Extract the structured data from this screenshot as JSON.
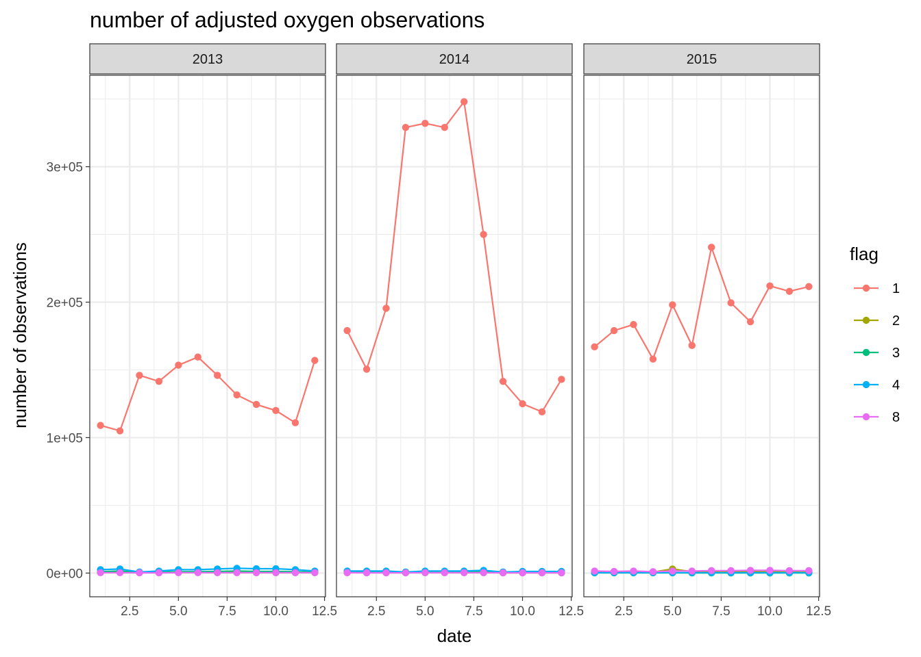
{
  "chart_data": {
    "type": "line",
    "title": "number of adjusted oxygen observations",
    "xlabel": "date",
    "ylabel": "number of observations",
    "xlim": [
      0.45,
      12.55
    ],
    "ylim": [
      -17500,
      367500
    ],
    "x_ticks": [
      2.5,
      5.0,
      7.5,
      10.0,
      12.5
    ],
    "x_tick_labels": [
      "2.5",
      "5.0",
      "7.5",
      "10.0",
      "12.5"
    ],
    "y_ticks": [
      0,
      100000,
      200000,
      300000
    ],
    "y_tick_labels": [
      "0e+00",
      "1e+05",
      "2e+05",
      "3e+05"
    ],
    "grid": true,
    "legend_title": "flag",
    "legend_position": "right",
    "series_legend": [
      {
        "name": "1",
        "color": "#F8766D"
      },
      {
        "name": "2",
        "color": "#A3A500"
      },
      {
        "name": "3",
        "color": "#00BF7D"
      },
      {
        "name": "4",
        "color": "#00B0F6"
      },
      {
        "name": "8",
        "color": "#E76BF3"
      }
    ],
    "panels": [
      {
        "facet_label": "2013",
        "series": [
          {
            "name": "1",
            "x": [
              1,
              2,
              3,
              4,
              5,
              6,
              7,
              8,
              9,
              10,
              11,
              12
            ],
            "values": [
              109000,
              105000,
              146000,
              141500,
              153500,
              159500,
              146000,
              131500,
              124500,
              120000,
              111000,
              157000
            ]
          },
          {
            "name": "2",
            "x": [
              1,
              2,
              3,
              4,
              5,
              6,
              7,
              8,
              9,
              10,
              11,
              12
            ],
            "values": [
              500,
              500,
              300,
              300,
              500,
              500,
              400,
              400,
              300,
              300,
              300,
              300
            ]
          },
          {
            "name": "3",
            "x": [
              1,
              2,
              3,
              4,
              5,
              6,
              7,
              8,
              9,
              10,
              11,
              12
            ],
            "values": [
              1000,
              1500,
              500,
              800,
              1000,
              1000,
              1200,
              1500,
              1200,
              1200,
              1000,
              800
            ]
          },
          {
            "name": "4",
            "x": [
              1,
              2,
              3,
              4,
              5,
              6,
              7,
              8,
              9,
              10,
              11,
              12
            ],
            "values": [
              2500,
              3000,
              800,
              1500,
              2500,
              2500,
              3000,
              3500,
              3200,
              3200,
              2500,
              1500
            ]
          },
          {
            "name": "8",
            "x": [
              1,
              2,
              3,
              4,
              5,
              6,
              7,
              8,
              9,
              10,
              11,
              12
            ],
            "values": [
              300,
              300,
              200,
              200,
              300,
              300,
              300,
              300,
              300,
              300,
              300,
              300
            ]
          }
        ]
      },
      {
        "facet_label": "2014",
        "series": [
          {
            "name": "1",
            "x": [
              1,
              2,
              3,
              4,
              5,
              6,
              7,
              8,
              9,
              10,
              11,
              12
            ],
            "values": [
              179000,
              150500,
              195500,
              329000,
              332000,
              329000,
              348000,
              250000,
              141500,
              125000,
              119000,
              143000
            ]
          },
          {
            "name": "2",
            "x": [
              1,
              2,
              3,
              4,
              5,
              6,
              7,
              8,
              9,
              10,
              11,
              12
            ],
            "values": [
              300,
              300,
              300,
              200,
              300,
              300,
              300,
              300,
              200,
              200,
              200,
              200
            ]
          },
          {
            "name": "3",
            "x": [
              1,
              2,
              3,
              4,
              5,
              6,
              7,
              8,
              9,
              10,
              11,
              12
            ],
            "values": [
              800,
              800,
              800,
              500,
              800,
              800,
              800,
              1000,
              500,
              600,
              600,
              600
            ]
          },
          {
            "name": "4",
            "x": [
              1,
              2,
              3,
              4,
              5,
              6,
              7,
              8,
              9,
              10,
              11,
              12
            ],
            "values": [
              1500,
              1500,
              1500,
              800,
              1500,
              1500,
              1500,
              2000,
              800,
              1200,
              1200,
              1200
            ]
          },
          {
            "name": "8",
            "x": [
              1,
              2,
              3,
              4,
              5,
              6,
              7,
              8,
              9,
              10,
              11,
              12
            ],
            "values": [
              300,
              200,
              200,
              200,
              300,
              300,
              300,
              300,
              200,
              200,
              200,
              200
            ]
          }
        ]
      },
      {
        "facet_label": "2015",
        "series": [
          {
            "name": "1",
            "x": [
              1,
              2,
              3,
              4,
              5,
              6,
              7,
              8,
              9,
              10,
              11,
              12
            ],
            "values": [
              167000,
              179000,
              183500,
              158000,
              198000,
              168000,
              240500,
              199500,
              185500,
              212000,
              208000,
              211500
            ]
          },
          {
            "name": "2",
            "x": [
              1,
              2,
              3,
              4,
              5,
              6,
              7,
              8,
              9,
              10,
              11,
              12
            ],
            "values": [
              800,
              1000,
              1000,
              800,
              3000,
              1000,
              1000,
              1000,
              1000,
              1000,
              800,
              800
            ]
          },
          {
            "name": "3",
            "x": [
              1,
              2,
              3,
              4,
              5,
              6,
              7,
              8,
              9,
              10,
              11,
              12
            ],
            "values": [
              200,
              200,
              200,
              200,
              200,
              100,
              100,
              100,
              100,
              100,
              100,
              100
            ]
          },
          {
            "name": "4",
            "x": [
              1,
              2,
              3,
              4,
              5,
              6,
              7,
              8,
              9,
              10,
              11,
              12
            ],
            "values": [
              300,
              300,
              300,
              300,
              300,
              300,
              300,
              300,
              300,
              300,
              300,
              300
            ]
          },
          {
            "name": "8",
            "x": [
              1,
              2,
              3,
              4,
              5,
              6,
              7,
              8,
              9,
              10,
              11,
              12
            ],
            "values": [
              1500,
              1200,
              1500,
              1000,
              1500,
              1500,
              1800,
              1800,
              2000,
              2000,
              1800,
              1800
            ]
          }
        ]
      }
    ]
  }
}
